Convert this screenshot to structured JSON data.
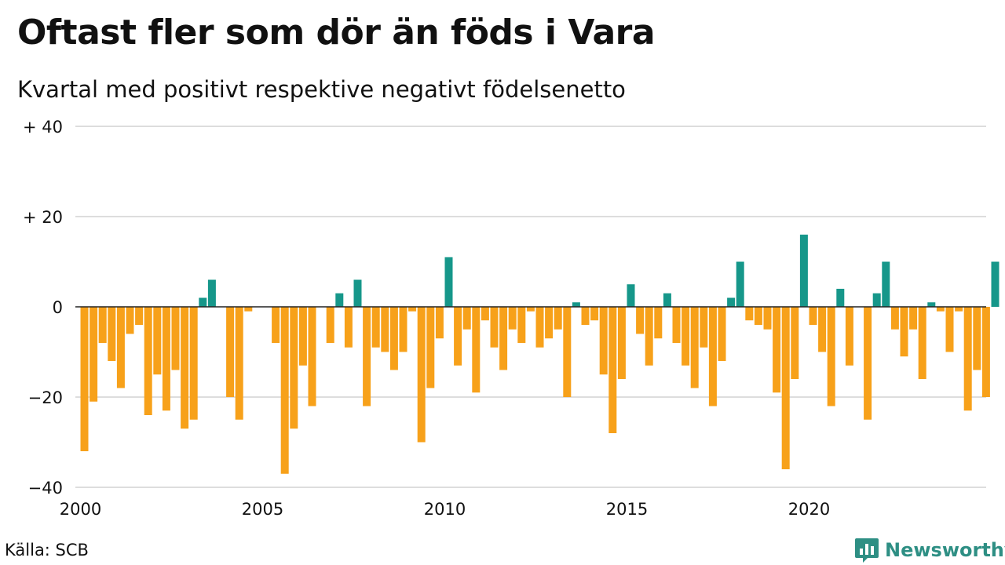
{
  "title": "Oftast fler som dör än föds i Vara",
  "subtitle": "Kvartal med positivt respektive negativt födelsenetto",
  "source": "Källa: SCB",
  "brand": {
    "name": "Newsworthy",
    "icon": "newsworthy-logo-icon"
  },
  "colors": {
    "positive": "#16978a",
    "negative": "#f7a11a",
    "grid": "#dddddd",
    "axis": "#222222"
  },
  "chart_data": {
    "type": "bar",
    "title": "Oftast fler som dör än föds i Vara",
    "subtitle": "Kvartal med positivt respektive negativt födelsenetto",
    "xlabel": "",
    "ylabel": "",
    "x_start_year": 2000,
    "periods_per_year": 4,
    "xlim": [
      2000,
      2024.75
    ],
    "ylim": [
      -40,
      40
    ],
    "y_ticks": [
      {
        "value": 40,
        "label": "+ 40"
      },
      {
        "value": 20,
        "label": "+ 20"
      },
      {
        "value": 0,
        "label": "0"
      },
      {
        "value": -20,
        "label": "−20"
      },
      {
        "value": -40,
        "label": "−40"
      }
    ],
    "x_ticks": [
      {
        "value": 2000,
        "label": "2000"
      },
      {
        "value": 2005,
        "label": "2005"
      },
      {
        "value": 2010,
        "label": "2010"
      },
      {
        "value": 2015,
        "label": "2015"
      },
      {
        "value": 2020,
        "label": "2020"
      }
    ],
    "grid": true,
    "values": [
      -32,
      -21,
      -8,
      -12,
      -18,
      -6,
      -4,
      -24,
      -15,
      -23,
      -14,
      -27,
      -25,
      2,
      6,
      0,
      -20,
      -25,
      -1,
      0,
      0,
      -8,
      -37,
      -27,
      -13,
      -22,
      0,
      -8,
      3,
      -9,
      6,
      -22,
      -9,
      -10,
      -14,
      -10,
      -1,
      -30,
      -18,
      -7,
      11,
      -13,
      -5,
      -19,
      -3,
      -9,
      -14,
      -5,
      -8,
      -1,
      -9,
      -7,
      -5,
      -20,
      1,
      -4,
      -3,
      -15,
      -28,
      -16,
      5,
      -6,
      -13,
      -7,
      3,
      -8,
      -13,
      -18,
      -9,
      -22,
      -12,
      2,
      10,
      -3,
      -4,
      -5,
      -19,
      -36,
      -16,
      16,
      -4,
      -10,
      -22,
      4,
      -13,
      0,
      -25,
      3,
      10,
      -5,
      -11,
      -5,
      -16,
      1,
      -1,
      -10,
      -1,
      -23,
      -14,
      -20,
      10
    ]
  }
}
